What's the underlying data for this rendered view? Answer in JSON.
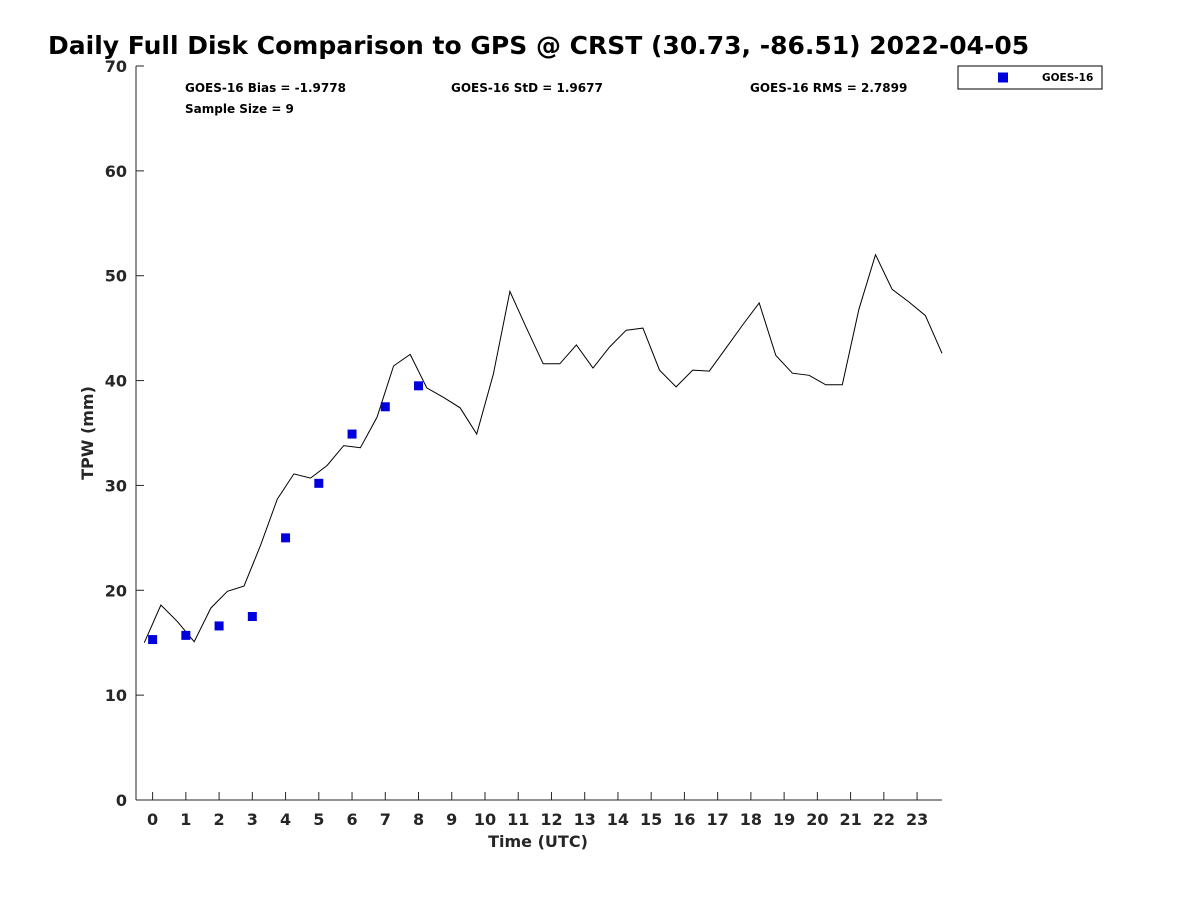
{
  "chart_data": {
    "type": "line",
    "title": "Daily Full Disk Comparison to GPS @ CRST (30.73, -86.51) 2022-04-05",
    "xlabel": "Time (UTC)",
    "ylabel": "TPW (mm)",
    "xlim": [
      -0.5,
      23.75
    ],
    "ylim": [
      0,
      70
    ],
    "xticks": [
      0,
      1,
      2,
      3,
      4,
      5,
      6,
      7,
      8,
      9,
      10,
      11,
      12,
      13,
      14,
      15,
      16,
      17,
      18,
      19,
      20,
      21,
      22,
      23
    ],
    "yticks": [
      0,
      10,
      20,
      30,
      40,
      50,
      60,
      70
    ],
    "grid": false,
    "legend_position": "top-right (outside plot)",
    "stats": {
      "bias": "GOES-16 Bias = -1.9778",
      "std": "GOES-16 StD = 1.9677",
      "rms": "GOES-16 RMS = 2.7899",
      "sample_size": "Sample Size = 9"
    },
    "series": [
      {
        "kind": "line",
        "color": "#000000",
        "x": [
          -0.25,
          0.25,
          0.75,
          1.25,
          1.75,
          2.25,
          2.75,
          3.25,
          3.75,
          4.25,
          4.75,
          5.25,
          5.75,
          6.25,
          6.75,
          7.25,
          7.75,
          8.25,
          8.75,
          9.25,
          9.75,
          10.25,
          10.75,
          11.25,
          11.75,
          12.25,
          12.75,
          13.25,
          13.75,
          14.25,
          14.75,
          15.25,
          15.75,
          16.25,
          16.75,
          17.25,
          17.75,
          18.25,
          18.75,
          19.25,
          19.75,
          20.25,
          20.75,
          21.25,
          21.75,
          22.25,
          22.75,
          23.25,
          23.75
        ],
        "values": [
          15.0,
          18.6,
          17.0,
          15.1,
          18.3,
          19.9,
          20.4,
          24.3,
          28.7,
          31.1,
          30.7,
          31.9,
          33.8,
          33.6,
          36.5,
          41.4,
          42.5,
          39.3,
          38.4,
          37.4,
          34.9,
          40.6,
          48.5,
          45.0,
          41.6,
          41.6,
          43.4,
          41.2,
          43.2,
          44.8,
          45.0,
          41.0,
          39.4,
          41.0,
          40.9,
          43.1,
          45.3,
          47.4,
          42.4,
          40.7,
          40.5,
          39.6,
          39.6,
          46.8,
          52.0,
          48.7,
          47.5,
          46.2,
          42.6
        ]
      },
      {
        "kind": "scatter",
        "name": "GOES-16",
        "color": "#0000dd",
        "x": [
          0,
          1,
          2,
          3,
          4,
          5,
          6,
          7,
          8
        ],
        "values": [
          15.3,
          15.7,
          16.6,
          17.5,
          25.0,
          30.2,
          34.9,
          37.5,
          39.5
        ]
      }
    ]
  }
}
